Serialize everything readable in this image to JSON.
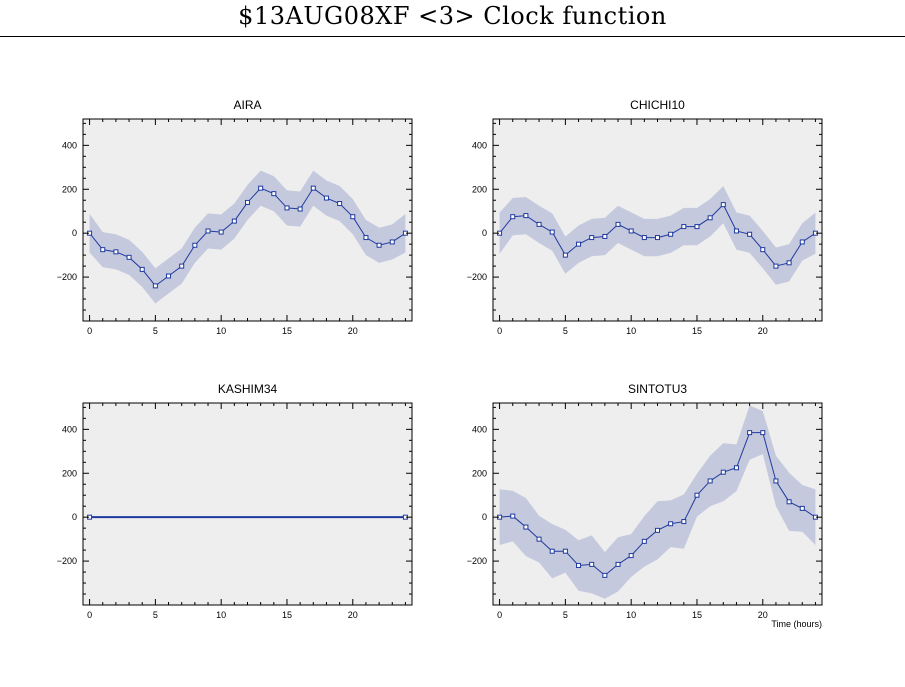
{
  "page": {
    "title": "$13AUG08XF <3>  Clock function"
  },
  "style": {
    "panel_bg": "#eeeeee",
    "band_color": "#c5c9de",
    "line_color": "#1f3a9e"
  },
  "chart_data": [
    {
      "type": "line",
      "title": "AIRA",
      "xlim": [
        -0.5,
        24.5
      ],
      "ylim": [
        -400,
        520
      ],
      "xticks": [
        0,
        5,
        10,
        15,
        20
      ],
      "yticks": [
        -200,
        0,
        200,
        400
      ],
      "x": [
        0,
        1,
        2,
        3,
        4,
        5,
        6,
        7,
        8,
        9,
        10,
        11,
        12,
        13,
        14,
        15,
        16,
        17,
        18,
        19,
        20,
        21,
        22,
        23,
        24
      ],
      "y": [
        0,
        -75,
        -85,
        -110,
        -165,
        -240,
        -195,
        -150,
        -55,
        10,
        5,
        55,
        140,
        205,
        180,
        115,
        110,
        205,
        160,
        135,
        75,
        -20,
        -55,
        -40,
        0
      ],
      "band": 80,
      "band_style": "smooth"
    },
    {
      "type": "line",
      "title": "CHICHI10",
      "xlim": [
        -0.5,
        24.5
      ],
      "ylim": [
        -400,
        520
      ],
      "xticks": [
        0,
        5,
        10,
        15,
        20
      ],
      "yticks": [
        -200,
        0,
        200,
        400
      ],
      "x": [
        0,
        1,
        2,
        3,
        4,
        5,
        6,
        7,
        8,
        9,
        10,
        11,
        12,
        13,
        14,
        15,
        16,
        17,
        18,
        19,
        20,
        21,
        22,
        23,
        24
      ],
      "y": [
        0,
        75,
        80,
        40,
        5,
        -100,
        -50,
        -20,
        -15,
        40,
        10,
        -20,
        -20,
        -5,
        30,
        30,
        70,
        130,
        10,
        -5,
        -75,
        -150,
        -135,
        -40,
        0
      ],
      "band": 85,
      "band_style": "smooth"
    },
    {
      "type": "line",
      "title": "KASHIM34",
      "xlim": [
        -0.5,
        24.5
      ],
      "ylim": [
        -400,
        520
      ],
      "xticks": [
        0,
        5,
        10,
        15,
        20
      ],
      "yticks": [
        -200,
        0,
        200,
        400
      ],
      "x": [
        0,
        24
      ],
      "y": [
        0,
        0
      ],
      "band": 0,
      "band_style": "none"
    },
    {
      "type": "line",
      "title": "SINTOTU3",
      "xlim": [
        -0.5,
        24.5
      ],
      "ylim": [
        -400,
        520
      ],
      "xticks": [
        0,
        5,
        10,
        15,
        20
      ],
      "yticks": [
        -200,
        0,
        200,
        400
      ],
      "xlabel": "Time (hours)",
      "x": [
        0,
        1,
        2,
        3,
        4,
        5,
        6,
        7,
        8,
        9,
        10,
        11,
        12,
        13,
        14,
        15,
        16,
        17,
        18,
        19,
        20,
        21,
        22,
        23,
        24
      ],
      "y": [
        0,
        5,
        -45,
        -100,
        -155,
        -155,
        -220,
        -215,
        -265,
        -215,
        -175,
        -110,
        -60,
        -30,
        -20,
        100,
        165,
        205,
        225,
        385,
        385,
        165,
        70,
        40,
        0
      ],
      "band": 115,
      "band_style": "jagged"
    }
  ]
}
